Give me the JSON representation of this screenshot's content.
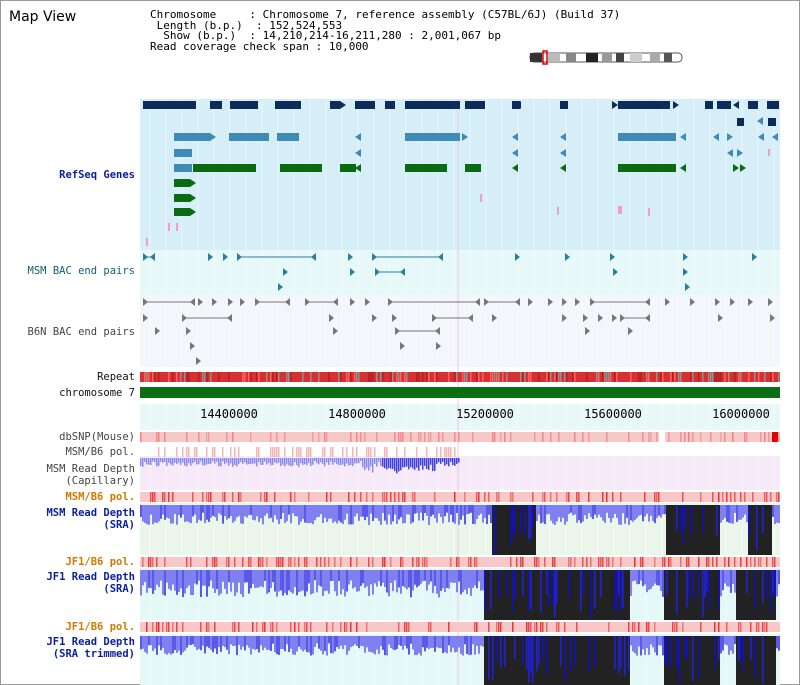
{
  "app": {
    "title": "Map View"
  },
  "header": {
    "chromosome_key": "Chromosome",
    "chromosome_val": ": Chromosome 7, reference assembly (C57BL/6J) (Build 37)",
    "length_key": "Length (b.p.)",
    "length_val": ": 152,524,553",
    "show_key": "Show (b.p.)",
    "show_val": ": 14,210,214-16,211,280 : 2,001,067 bp",
    "coverage_key": "Read coverage check span",
    "coverage_val": ": 10,000"
  },
  "tracks": {
    "refseq": "RefSeq Genes",
    "msm_bac": "MSM BAC end pairs",
    "b6n_bac": "B6N BAC end pairs",
    "repeat": "Repeat",
    "chromosome": "chromosome 7",
    "dbsnp": "dbSNP(Mouse)",
    "msm_b6_pol_1": "MSM/B6 pol.",
    "msm_read_depth_cap_1": "MSM Read Depth",
    "msm_read_depth_cap_2": "(Capillary)",
    "msm_b6_pol_2": "MSM/B6 pol.",
    "msm_read_depth_sra_1": "MSM Read Depth",
    "msm_read_depth_sra_2": "(SRA)",
    "jf1_b6_pol_1": "JF1/B6 pol.",
    "jf1_read_depth_sra_1": "JF1 Read Depth",
    "jf1_read_depth_sra_2": "(SRA)",
    "jf1_b6_pol_2": "JF1/B6 pol.",
    "jf1_read_depth_trim_1": "JF1 Read Depth",
    "jf1_read_depth_trim_2": "(SRA trimmed)"
  },
  "ruler": {
    "ticks": [
      "14400000",
      "14800000",
      "15200000",
      "15600000",
      "16000000"
    ]
  },
  "colors": {
    "refseq_bg": "#d6eef8",
    "msm_bac_bg": "#e6f8f8",
    "b6n_bac_bg": "#f4f6fb",
    "gene_dark": "#0d2c5c",
    "gene_mid": "#3f8bb3",
    "gene_green": "#0c6a12",
    "chromosome_bar": "#0b6e12",
    "depth_blue": "#2020e0",
    "depth_light": "#8080f0",
    "depth_black": "#222222",
    "pol_red": "#e03030",
    "label_blue": "#0b1f9e",
    "label_orange": "#d07a00"
  }
}
